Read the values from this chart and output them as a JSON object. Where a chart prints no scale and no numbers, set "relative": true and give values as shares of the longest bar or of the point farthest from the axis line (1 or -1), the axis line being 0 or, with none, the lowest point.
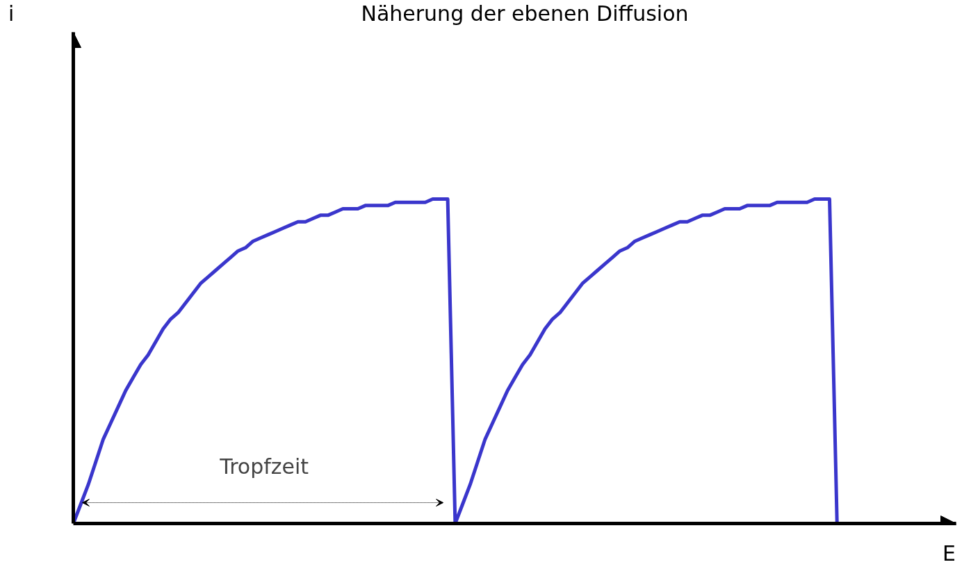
{
  "chart_data": {
    "type": "line",
    "title": "Näherung der ebenen Diffusion",
    "xlabel": "E",
    "relative": true,
    "tick_labels": false,
    "grid": false,
    "annotations": [
      "Tropfzeit",
      "i"
    ],
    "categories": [
      null,
      null,
      null,
      null,
      null,
      null,
      null,
      null,
      null,
      null,
      null,
      null,
      null,
      null,
      null,
      null,
      null,
      null,
      null,
      null,
      null,
      null,
      null,
      null,
      null,
      null,
      null,
      null,
      null,
      null,
      null,
      null,
      null,
      null,
      null,
      null,
      null,
      null,
      null,
      null,
      null,
      null,
      null,
      null,
      null,
      null,
      null,
      null,
      null,
      null,
      null,
      null,
      null,
      null,
      null,
      null,
      null,
      null,
      null,
      null,
      null,
      null,
      null,
      null,
      null,
      null,
      null,
      null,
      null,
      null,
      null,
      null,
      null,
      null,
      null,
      null,
      null,
      null,
      null,
      null,
      null,
      null,
      null,
      null,
      null,
      null,
      null,
      null,
      null,
      null,
      null,
      null,
      null,
      null,
      null,
      null,
      null,
      null,
      null,
      null,
      null,
      null,
      null
    ],
    "series": [
      {
        "color": "#3a36cc",
        "values": [
          0,
          0.06,
          0.12,
          0.19,
          0.26,
          0.31,
          0.36,
          0.41,
          0.45,
          0.49,
          0.52,
          0.56,
          0.6,
          0.63,
          0.65,
          0.68,
          0.71,
          0.74,
          0.76,
          0.78,
          0.8,
          0.82,
          0.84,
          0.85,
          0.87,
          0.88,
          0.89,
          0.9,
          0.91,
          0.92,
          0.93,
          0.93,
          0.94,
          0.95,
          0.95,
          0.96,
          0.97,
          0.97,
          0.97,
          0.98,
          0.98,
          0.98,
          0.98,
          0.99,
          0.99,
          0.99,
          0.99,
          0.99,
          1,
          1,
          1,
          0,
          0.06,
          0.12,
          0.19,
          0.26,
          0.31,
          0.36,
          0.41,
          0.45,
          0.49,
          0.52,
          0.56,
          0.6,
          0.63,
          0.65,
          0.68,
          0.71,
          0.74,
          0.76,
          0.78,
          0.8,
          0.82,
          0.84,
          0.85,
          0.87,
          0.88,
          0.89,
          0.9,
          0.91,
          0.92,
          0.93,
          0.93,
          0.94,
          0.95,
          0.95,
          0.96,
          0.97,
          0.97,
          0.97,
          0.98,
          0.98,
          0.98,
          0.98,
          0.99,
          0.99,
          0.99,
          0.99,
          0.99,
          1,
          1,
          1,
          0
        ]
      }
    ]
  }
}
